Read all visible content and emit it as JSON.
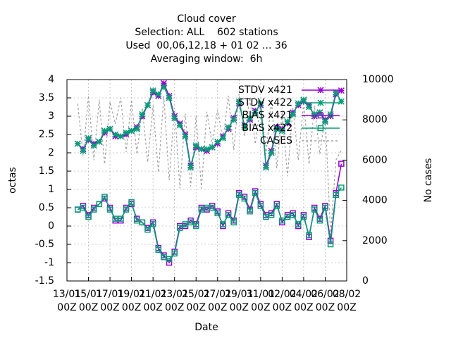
{
  "chart_data": {
    "type": "line",
    "title": [
      "Cloud cover",
      "Selection: ALL    602 stations",
      "Used  00,06,12,18 + 01 02 ... 36",
      "Averaging window:  6h"
    ],
    "xlabel": "Date",
    "ylabel": "octas",
    "y2label": "No cases",
    "grid": true,
    "legend": "top right",
    "xlim": [
      0,
      26
    ],
    "xticks": [
      {
        "value": 0,
        "label": "13/01\n00Z"
      },
      {
        "value": 2,
        "label": "15/01\n00Z"
      },
      {
        "value": 4,
        "label": "17/01\n00Z"
      },
      {
        "value": 6,
        "label": "19/01\n00Z"
      },
      {
        "value": 8,
        "label": "21/01\n00Z"
      },
      {
        "value": 10,
        "label": "23/01\n00Z"
      },
      {
        "value": 12,
        "label": "25/01\n00Z"
      },
      {
        "value": 14,
        "label": "27/01\n00Z"
      },
      {
        "value": 16,
        "label": "29/01\n00Z"
      },
      {
        "value": 18,
        "label": "31/01\n00Z"
      },
      {
        "value": 20,
        "label": "02/02\n00Z"
      },
      {
        "value": 22,
        "label": "04/02\n00Z"
      },
      {
        "value": 24,
        "label": "06/02\n00Z"
      },
      {
        "value": 26,
        "label": "08/02\n00Z"
      }
    ],
    "ylim": [
      -1.5,
      4
    ],
    "yticks": [
      -1.5,
      -1,
      -0.5,
      0,
      0.5,
      1,
      1.5,
      2,
      2.5,
      3,
      3.5,
      4
    ],
    "y2lim": [
      0,
      10000
    ],
    "y2ticks": [
      0,
      2000,
      4000,
      6000,
      8000,
      10000
    ],
    "x": [
      1,
      1.5,
      2,
      2.5,
      3,
      3.5,
      4,
      4.5,
      5,
      5.5,
      6,
      6.5,
      7,
      7.5,
      8,
      8.5,
      9,
      9.5,
      10,
      10.5,
      11,
      11.5,
      12,
      12.5,
      13,
      13.5,
      14,
      14.5,
      15,
      15.5,
      16,
      16.5,
      17,
      17.5,
      18,
      18.5,
      19,
      19.5,
      20,
      20.5,
      21,
      21.5,
      22,
      22.5,
      23,
      23.5,
      24,
      24.5,
      25,
      25.5
    ],
    "series": [
      {
        "name": "STDV x421",
        "color": "#9400d3",
        "marker": "star",
        "values": [
          2.25,
          2.1,
          2.35,
          2.25,
          2.3,
          2.55,
          2.65,
          2.45,
          2.45,
          2.5,
          2.6,
          2.7,
          3.0,
          3.3,
          3.65,
          3.55,
          3.9,
          3.55,
          3.0,
          2.8,
          2.5,
          1.65,
          2.15,
          2.1,
          2.05,
          2.15,
          2.25,
          2.45,
          2.65,
          2.95,
          3.35,
          2.75,
          2.9,
          3.15,
          3.3,
          1.65,
          2.05,
          2.7,
          2.65,
          2.8,
          3.1,
          3.3,
          3.4,
          3.3,
          3.0,
          3.1,
          2.9,
          3.0,
          3.6,
          3.7
        ]
      },
      {
        "name": "STDV x422",
        "color": "#009e73",
        "marker": "star",
        "values": [
          2.25,
          2.05,
          2.4,
          2.2,
          2.3,
          2.6,
          2.65,
          2.5,
          2.45,
          2.55,
          2.6,
          2.65,
          3.05,
          3.3,
          3.7,
          3.6,
          3.8,
          3.5,
          2.95,
          2.75,
          2.45,
          1.6,
          2.2,
          2.1,
          2.1,
          2.15,
          2.3,
          2.4,
          2.7,
          2.9,
          3.4,
          2.7,
          2.95,
          3.1,
          3.35,
          1.6,
          2.0,
          2.65,
          2.6,
          2.85,
          3.05,
          3.35,
          3.45,
          3.25,
          3.05,
          3.1,
          2.85,
          3.05,
          3.65,
          3.4
        ]
      },
      {
        "name": "BIAS x421",
        "color": "#9400d3",
        "marker": "square",
        "values": [
          0.45,
          0.55,
          0.3,
          0.5,
          0.6,
          0.75,
          0.5,
          0.15,
          0.15,
          0.5,
          0.6,
          0.2,
          0.1,
          -0.05,
          0.1,
          -0.6,
          -0.8,
          -1.0,
          -0.7,
          0.0,
          0.0,
          0.15,
          0.05,
          0.5,
          0.45,
          0.55,
          0.4,
          0.0,
          0.35,
          0.15,
          0.9,
          0.8,
          0.45,
          0.95,
          0.6,
          0.3,
          0.35,
          0.6,
          0.1,
          0.3,
          0.35,
          0.0,
          0.3,
          -0.3,
          0.5,
          0.2,
          0.55,
          -0.4,
          0.9,
          1.7
        ]
      },
      {
        "name": "BIAS x422",
        "color": "#009e73",
        "marker": "square",
        "values": [
          0.45,
          0.5,
          0.25,
          0.45,
          0.6,
          0.8,
          0.45,
          0.2,
          0.2,
          0.45,
          0.65,
          0.15,
          0.1,
          -0.1,
          0.05,
          -0.65,
          -0.85,
          -0.9,
          -0.75,
          -0.05,
          0.05,
          0.1,
          0.0,
          0.45,
          0.5,
          0.5,
          0.35,
          0.05,
          0.3,
          0.1,
          0.85,
          0.75,
          0.4,
          0.9,
          0.55,
          0.25,
          0.3,
          0.55,
          0.15,
          0.25,
          0.3,
          0.05,
          0.25,
          -0.25,
          0.45,
          0.15,
          0.5,
          -0.5,
          0.85,
          1.05
        ]
      },
      {
        "name": "CASES",
        "color": "#a0a0a4",
        "axis": "y2",
        "dash": true,
        "values": [
          8800,
          6200,
          9200,
          6000,
          9000,
          5800,
          8900,
          7800,
          9100,
          6400,
          9000,
          6300,
          8600,
          5900,
          8700,
          5400,
          9200,
          5000,
          8600,
          4600,
          8300,
          4700,
          8200,
          4600,
          8400,
          6800,
          8500,
          7000,
          9200,
          6500,
          9300,
          7200,
          9100,
          6800,
          8800,
          6300,
          9000,
          5600,
          8400,
          5200,
          8600,
          6000,
          8900,
          5800,
          8700,
          6300,
          8200,
          2300,
          6000,
          6500
        ]
      }
    ]
  }
}
